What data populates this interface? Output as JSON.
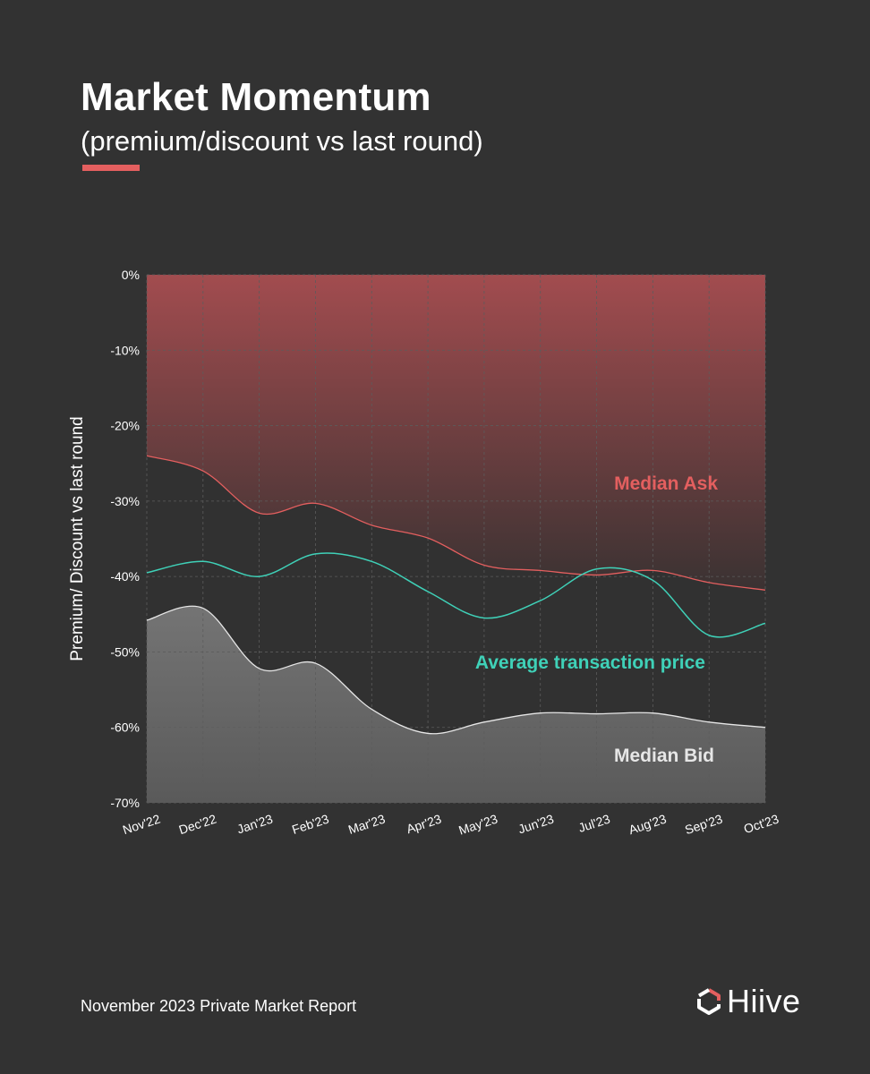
{
  "header": {
    "title": "Market Momentum",
    "subtitle": "(premium/discount vs last round)"
  },
  "footer": {
    "report": "November 2023 Private Market Report",
    "brand": "Hiive"
  },
  "colors": {
    "background": "#323232",
    "accent": "#e45f5f",
    "ask": "#e45f5f",
    "avg": "#3fd1b8",
    "bid": "#e6e6e6"
  },
  "chart_data": {
    "type": "area",
    "title": "",
    "xlabel": "",
    "ylabel": "Premium/ Discount vs last round",
    "ylim": [
      -70,
      0
    ],
    "yticks": [
      0,
      -10,
      -20,
      -30,
      -40,
      -50,
      -60,
      -70
    ],
    "ytick_labels": [
      "0%",
      "-10%",
      "-20%",
      "-30%",
      "-40%",
      "-50%",
      "-60%",
      "-70%"
    ],
    "categories": [
      "Nov'22",
      "Dec'22",
      "Jan'23",
      "Feb'23",
      "Mar'23",
      "Apr'23",
      "May'23",
      "Jun'23",
      "Jul'23",
      "Aug'23",
      "Sep'23",
      "Oct'23"
    ],
    "series": [
      {
        "name": "Median Ask",
        "key": "ask",
        "label": "Median Ask",
        "values": [
          -24,
          -26,
          -31.6,
          -30.3,
          -33.2,
          -34.9,
          -38.5,
          -39.2,
          -39.8,
          -39.2,
          -40.8,
          -41.8
        ]
      },
      {
        "name": "Average transaction price",
        "key": "avg",
        "label": "Average transaction price",
        "values": [
          -39.5,
          -38,
          -40,
          -37,
          -38,
          -42,
          -45.5,
          -43.2,
          -39,
          -40.5,
          -47.8,
          -46.2
        ]
      },
      {
        "name": "Median Bid",
        "key": "bid",
        "label": "Median Bid",
        "values": [
          -45.8,
          -44.2,
          -52.2,
          -51.5,
          -57.6,
          -60.8,
          -59.3,
          -58.1,
          -58.2,
          -58.1,
          -59.3,
          -60
        ]
      }
    ]
  }
}
